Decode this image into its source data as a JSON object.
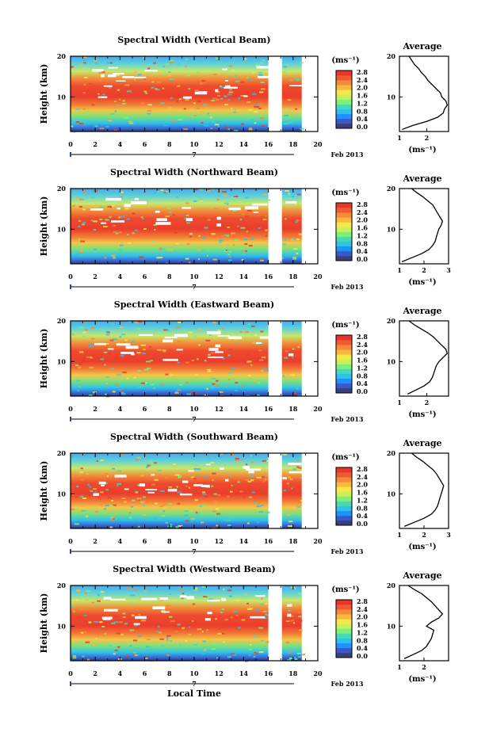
{
  "figure": {
    "xlabel": "Local Time",
    "date_label": "Feb 2013",
    "date_marker": "7"
  },
  "colorbar": {
    "unit": "(ms⁻¹)",
    "ticks": [
      "0.0",
      "0.4",
      "0.8",
      "1.2",
      "1.6",
      "2.0",
      "2.4",
      "2.8"
    ],
    "colors": [
      "#3a3f7a",
      "#3b58c8",
      "#1e90ff",
      "#2fc2e8",
      "#48d9b2",
      "#7cf07a",
      "#c8f05a",
      "#f6e84a",
      "#f6b93c",
      "#f48a3a",
      "#f05a32",
      "#e8352a"
    ]
  },
  "chart_data": [
    {
      "type": "heatmap",
      "title": "Spectral Width (Vertical Beam)",
      "ylabel": "Height (km)",
      "x_ticks": [
        "0",
        "2",
        "4",
        "6",
        "8",
        "10",
        "12",
        "14",
        "16",
        "18",
        "20"
      ],
      "y_ticks": [
        "10",
        "20"
      ],
      "xlim": [
        0,
        20
      ],
      "ylim": [
        1.5,
        20
      ],
      "data_gap_hours": [
        [
          16.0,
          17.1
        ]
      ],
      "data_end_hour": 18.7,
      "average": {
        "title": "Average",
        "xlabel": "(ms⁻¹)",
        "x_ticks": [
          "1",
          "2"
        ],
        "xlim": [
          1,
          2.8
        ],
        "heights": [
          2,
          3,
          4,
          5,
          6,
          7,
          8,
          9,
          10,
          11,
          12,
          13,
          14,
          15,
          16,
          17,
          18,
          19,
          20
        ],
        "values": [
          1.1,
          1.5,
          2.0,
          2.4,
          2.6,
          2.65,
          2.75,
          2.7,
          2.55,
          2.5,
          2.35,
          2.2,
          2.05,
          1.95,
          1.8,
          1.7,
          1.55,
          1.45,
          1.35
        ]
      }
    },
    {
      "type": "heatmap",
      "title": "Spectral Width (Northward Beam)",
      "ylabel": "Height (km)",
      "x_ticks": [
        "0",
        "2",
        "4",
        "6",
        "8",
        "10",
        "12",
        "14",
        "16",
        "18",
        "20"
      ],
      "y_ticks": [
        "10",
        "20"
      ],
      "xlim": [
        0,
        20
      ],
      "ylim": [
        1.5,
        20
      ],
      "data_gap_hours": [
        [
          16.0,
          17.1
        ]
      ],
      "data_end_hour": 18.7,
      "average": {
        "title": "Average",
        "xlabel": "(ms⁻¹)",
        "x_ticks": [
          "1",
          "2",
          "3"
        ],
        "xlim": [
          1,
          3
        ],
        "heights": [
          2,
          3,
          4,
          5,
          6,
          7,
          8,
          9,
          10,
          11,
          12,
          13,
          14,
          15,
          16,
          17,
          18,
          19,
          20
        ],
        "values": [
          1.1,
          1.5,
          1.9,
          2.2,
          2.35,
          2.45,
          2.5,
          2.55,
          2.6,
          2.7,
          2.75,
          2.65,
          2.55,
          2.45,
          2.35,
          2.15,
          1.95,
          1.7,
          1.5
        ]
      }
    },
    {
      "type": "heatmap",
      "title": "Spectral Width (Eastward Beam)",
      "ylabel": "Height (km)",
      "x_ticks": [
        "0",
        "2",
        "4",
        "6",
        "8",
        "10",
        "12",
        "14",
        "16",
        "18",
        "20"
      ],
      "y_ticks": [
        "10",
        "20"
      ],
      "xlim": [
        0,
        20
      ],
      "ylim": [
        1.5,
        20
      ],
      "data_gap_hours": [
        [
          16.0,
          17.1
        ]
      ],
      "data_end_hour": 18.7,
      "average": {
        "title": "Average",
        "xlabel": "(ms⁻¹)",
        "x_ticks": [
          "1",
          "2"
        ],
        "xlim": [
          1,
          2.8
        ],
        "heights": [
          2,
          3,
          4,
          5,
          6,
          7,
          8,
          9,
          10,
          11,
          12,
          13,
          14,
          15,
          16,
          17,
          18,
          19,
          20
        ],
        "values": [
          1.3,
          1.6,
          1.9,
          2.1,
          2.2,
          2.25,
          2.3,
          2.35,
          2.45,
          2.6,
          2.75,
          2.7,
          2.55,
          2.4,
          2.25,
          2.05,
          1.8,
          1.55,
          1.35
        ]
      }
    },
    {
      "type": "heatmap",
      "title": "Spectral Width (Southward Beam)",
      "ylabel": "Height (km)",
      "x_ticks": [
        "0",
        "2",
        "4",
        "6",
        "8",
        "10",
        "12",
        "14",
        "16",
        "18",
        "20"
      ],
      "y_ticks": [
        "10",
        "20"
      ],
      "xlim": [
        0,
        20
      ],
      "ylim": [
        1.5,
        20
      ],
      "data_gap_hours": [
        [
          16.0,
          17.1
        ]
      ],
      "data_end_hour": 18.7,
      "average": {
        "title": "Average",
        "xlabel": "(ms⁻¹)",
        "x_ticks": [
          "1",
          "2",
          "3"
        ],
        "xlim": [
          1,
          3
        ],
        "heights": [
          2,
          3,
          4,
          5,
          6,
          7,
          8,
          9,
          10,
          11,
          12,
          13,
          14,
          15,
          16,
          17,
          18,
          19,
          20
        ],
        "values": [
          1.2,
          1.6,
          2.0,
          2.3,
          2.45,
          2.55,
          2.6,
          2.65,
          2.7,
          2.75,
          2.8,
          2.7,
          2.6,
          2.5,
          2.35,
          2.15,
          1.95,
          1.7,
          1.5
        ]
      }
    },
    {
      "type": "heatmap",
      "title": "Spectral Width (Westward Beam)",
      "ylabel": "Height (km)",
      "x_ticks": [
        "0",
        "2",
        "4",
        "6",
        "8",
        "10",
        "12",
        "14",
        "16",
        "18",
        "20"
      ],
      "y_ticks": [
        "10",
        "20"
      ],
      "xlim": [
        0,
        20
      ],
      "ylim": [
        1.5,
        20
      ],
      "data_gap_hours": [
        [
          16.0,
          17.1
        ]
      ],
      "data_end_hour": 18.7,
      "average": {
        "title": "Average",
        "xlabel": "(ms⁻¹)",
        "x_ticks": [
          "1",
          "2"
        ],
        "xlim": [
          1,
          3
        ],
        "heights": [
          2,
          3,
          4,
          5,
          6,
          7,
          8,
          9,
          10,
          11,
          12,
          13,
          14,
          15,
          16,
          17,
          18,
          19,
          20
        ],
        "values": [
          1.2,
          1.55,
          1.9,
          2.1,
          2.2,
          2.3,
          2.35,
          2.4,
          2.1,
          2.3,
          2.6,
          2.75,
          2.6,
          2.45,
          2.3,
          2.1,
          1.9,
          1.6,
          1.35
        ]
      }
    }
  ]
}
